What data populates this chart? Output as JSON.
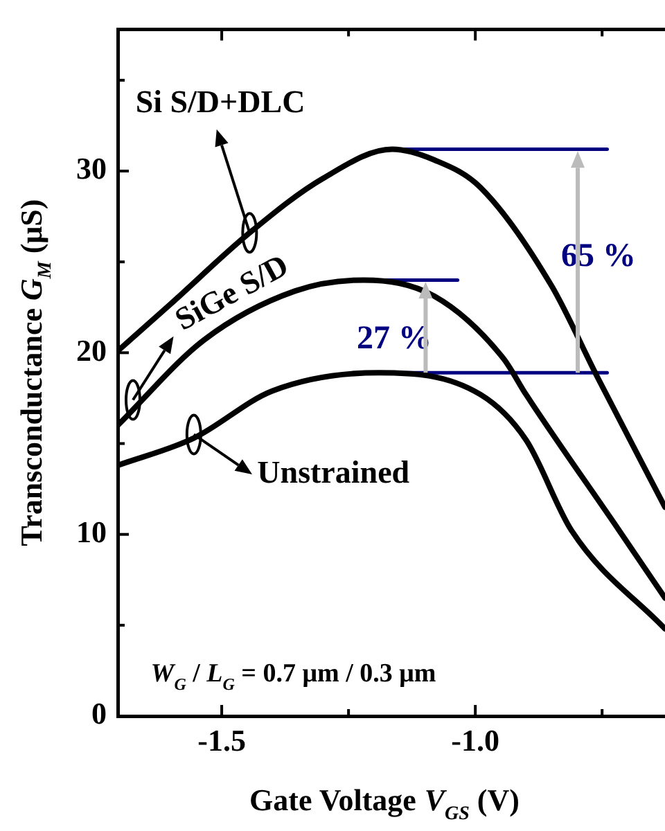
{
  "chart_data": {
    "type": "line",
    "xlabel": "Gate Voltage V$_{GS}$ (V)",
    "ylabel": "Transconductance G$_{M}$ (μS)",
    "xlim": [
      -1.705,
      -0.626
    ],
    "xticks": [
      -1.5,
      {
        "value": -1.25,
        "label": null
      },
      {
        "value": -1,
        "label": "-1.0"
      },
      {
        "value": -0.75,
        "label": null
      }
    ],
    "ylim": [
      0,
      37.8
    ],
    "yticks": [
      0,
      {
        "value": 5,
        "label": null
      },
      10,
      {
        "value": 15,
        "label": null
      },
      20,
      {
        "value": 25,
        "label": null
      },
      30,
      {
        "value": 35,
        "label": null
      }
    ],
    "grid": false,
    "legend": "left",
    "marker": "none",
    "line_style": "solid",
    "series": [
      {
        "name": "Si S/D+DLC",
        "color": "#000000",
        "x": [
          -1.705,
          -1.6,
          -1.445,
          -1.3,
          -1.164,
          -1.08,
          -0.99,
          -0.85,
          -0.76,
          -0.626
        ],
        "values": [
          20.1,
          22.7,
          26.6,
          29.6,
          31.2,
          30.6,
          29.1,
          23.7,
          18.7,
          11.5
        ]
      },
      {
        "name": "SiGe S/D",
        "color": "#000000",
        "x": [
          -1.705,
          -1.535,
          -1.355,
          -1.22,
          -1.08,
          -0.945,
          -0.9,
          -0.716,
          -0.626
        ],
        "values": [
          16.0,
          20.7,
          23.4,
          24.0,
          23.1,
          19.7,
          17.7,
          10.2,
          6.5
        ]
      },
      {
        "name": "Unstrained",
        "color": "#000000",
        "x": [
          -1.705,
          -1.555,
          -1.4,
          -1.19,
          -0.99,
          -0.9,
          -0.81,
          -0.626
        ],
        "values": [
          13.8,
          15.3,
          17.9,
          18.9,
          17.7,
          15.2,
          10.2,
          4.8
        ]
      },
      {
        "color": "#000080",
        "x": [
          -1.164,
          -0.74
        ],
        "values": [
          31.2,
          31.2
        ]
      },
      {
        "color": "#000080",
        "x": [
          -1.22,
          -1.035
        ],
        "values": [
          24.0,
          24.0
        ]
      },
      {
        "color": "#000080",
        "x": [
          -1.19,
          -0.74
        ],
        "values": [
          18.9,
          18.9
        ]
      }
    ],
    "annotations": [
      "65 %",
      "27 %",
      "W$_{G}$ / L$_{G}$ = 0.7 μm / 0.3 μm"
    ]
  }
}
